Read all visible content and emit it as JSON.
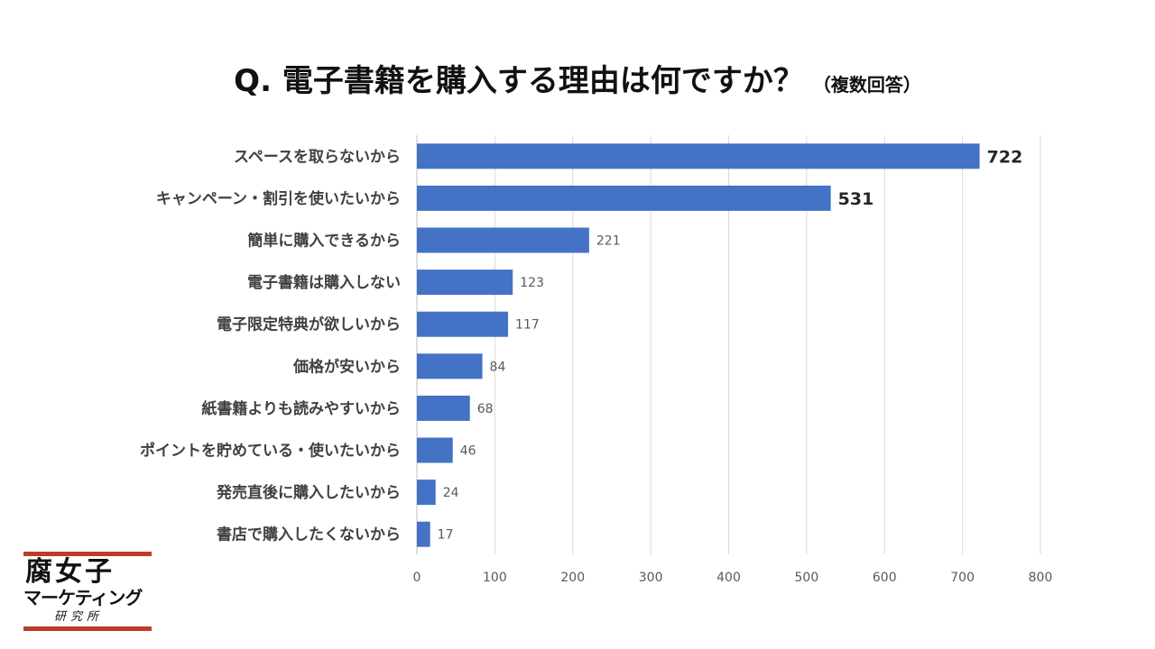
{
  "title": "Q. 電子書籍を購入する理由は何ですか？",
  "subtitle": "（複数回答）",
  "chart_data": {
    "type": "bar",
    "orientation": "horizontal",
    "categories": [
      "スペースを取らないから",
      "キャンペーン・割引を使いたいから",
      "簡単に購入できるから",
      "電子書籍は購入しない",
      "電子限定特典が欲しいから",
      "価格が安いから",
      "紙書籍よりも読みやすいから",
      "ポイントを貯めている・使いたいから",
      "発売直後に購入したいから",
      "書店で購入したくないから"
    ],
    "values": [
      722,
      531,
      221,
      123,
      117,
      84,
      68,
      46,
      24,
      17
    ],
    "data_labels": [
      "722",
      "531",
      "221",
      "123",
      "117",
      "84",
      "68",
      "46",
      "24",
      "17"
    ],
    "emphasized_labels": [
      0,
      1
    ],
    "xlim": [
      0,
      800
    ],
    "xticks": [
      0,
      100,
      200,
      300,
      400,
      500,
      600,
      700,
      800
    ],
    "xtick_labels": [
      "0",
      "100",
      "200",
      "300",
      "400",
      "500",
      "600",
      "700",
      "800"
    ],
    "grid": true,
    "bar_color": "#4472C4"
  },
  "logo": {
    "line1": "腐女子",
    "line2": "マーケティング",
    "line3": "研究所",
    "accent_color": "#C0392B"
  }
}
